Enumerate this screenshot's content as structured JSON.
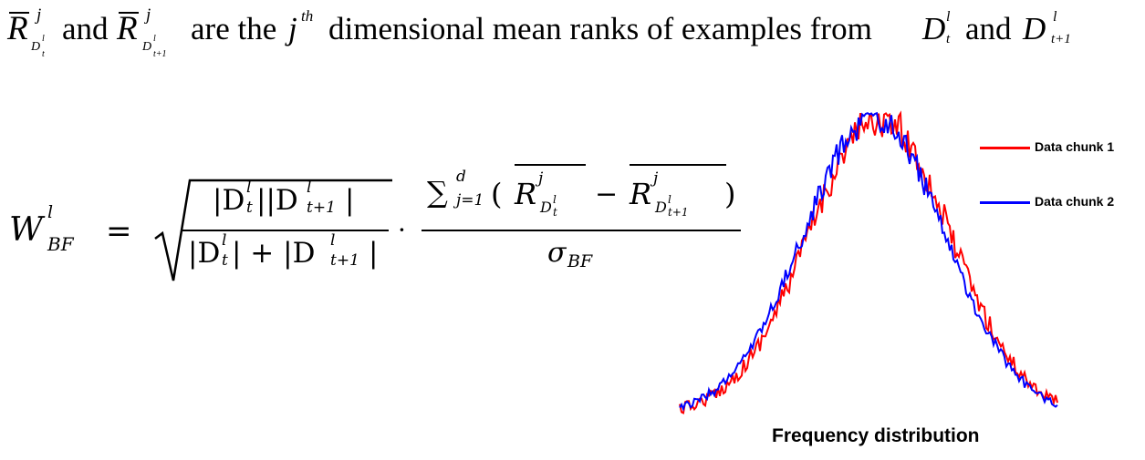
{
  "statement": {
    "symbol_R": "R",
    "sup_j": "j",
    "sub_D": "D",
    "sub_l": "l",
    "sub_t": "t",
    "sub_t1": "t+1",
    "and_1": "and",
    "and_2": "and",
    "text_are_the": "are the",
    "sym_j": "j",
    "sup_th": "th",
    "text_rest": "dimensional mean ranks of examples from",
    "sym_D": "D"
  },
  "formula": {
    "lhs_W": "W",
    "lhs_sup_l": "l",
    "lhs_sub_BF": "BF",
    "equals": "=",
    "frac1_num": "|D",
    "frac1_num_b": "||D",
    "frac1_num_c": "|",
    "frac1_den": "|D",
    "frac1_den_b": "| + |D",
    "frac1_den_c": "|",
    "sub_t": "t",
    "sub_t1": "t+1",
    "sup_l": "l",
    "dot": "·",
    "sum": "∑",
    "sum_lower": "j=1",
    "sum_upper": "d",
    "paren_open": "(",
    "R": "R",
    "minus": "−",
    "paren_close": ")",
    "sigma": "σ",
    "sigma_sub": "BF"
  },
  "chart_data": {
    "type": "line",
    "title": "",
    "xlabel": "",
    "ylabel": "",
    "caption": "Frequency distribution",
    "legend_position": "top-right",
    "series": [
      {
        "name": "Data chunk 1",
        "color": "#ff0000"
      },
      {
        "name": "Data chunk 2",
        "color": "#0000ff"
      }
    ]
  }
}
